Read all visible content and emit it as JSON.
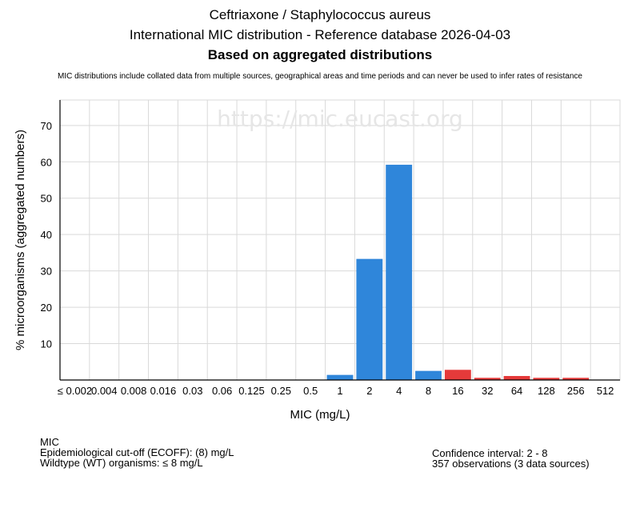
{
  "header": {
    "title": "Ceftriaxone / Staphylococcus aureus",
    "subtitle": "International MIC distribution - Reference database 2026-04-03",
    "subtitle2": "Based on aggregated distributions",
    "note": "MIC distributions include collated data from multiple sources, geographical areas and time periods and can never be used to infer rates of resistance"
  },
  "watermark": "https://mic.eucast.org",
  "colors": {
    "wildtype": "#2f86da",
    "non_wildtype": "#e53a3a",
    "grid": "#d9d9d9",
    "watermark": "#e6e6e6"
  },
  "chart_data": {
    "type": "bar",
    "title": "",
    "xlabel": "MIC (mg/L)",
    "ylabel": "% microorganisms (aggregated numbers)",
    "ylim": [
      0,
      77
    ],
    "yticks": [
      10,
      20,
      30,
      40,
      50,
      60,
      70
    ],
    "grid": true,
    "categories": [
      "≤ 0.002",
      "0.004",
      "0.008",
      "0.016",
      "0.03",
      "0.06",
      "0.125",
      "0.25",
      "0.5",
      "1",
      "2",
      "4",
      "8",
      "16",
      "32",
      "64",
      "128",
      "256",
      "512"
    ],
    "values": [
      0,
      0,
      0,
      0,
      0,
      0,
      0,
      0,
      0,
      1.4,
      33.3,
      59.2,
      2.5,
      2.8,
      0.6,
      1.1,
      0.6,
      0.6,
      0
    ],
    "bar_colors": [
      "wildtype",
      "wildtype",
      "wildtype",
      "wildtype",
      "wildtype",
      "wildtype",
      "wildtype",
      "wildtype",
      "wildtype",
      "wildtype",
      "wildtype",
      "wildtype",
      "wildtype",
      "non_wildtype",
      "non_wildtype",
      "non_wildtype",
      "non_wildtype",
      "non_wildtype",
      "non_wildtype"
    ]
  },
  "footer": {
    "left": [
      "MIC",
      "Epidemiological cut-off (ECOFF): (8) mg/L",
      "Wildtype (WT) organisms: ≤ 8 mg/L"
    ],
    "right": [
      "Confidence interval: 2 - 8",
      "357 observations (3 data sources)"
    ]
  }
}
